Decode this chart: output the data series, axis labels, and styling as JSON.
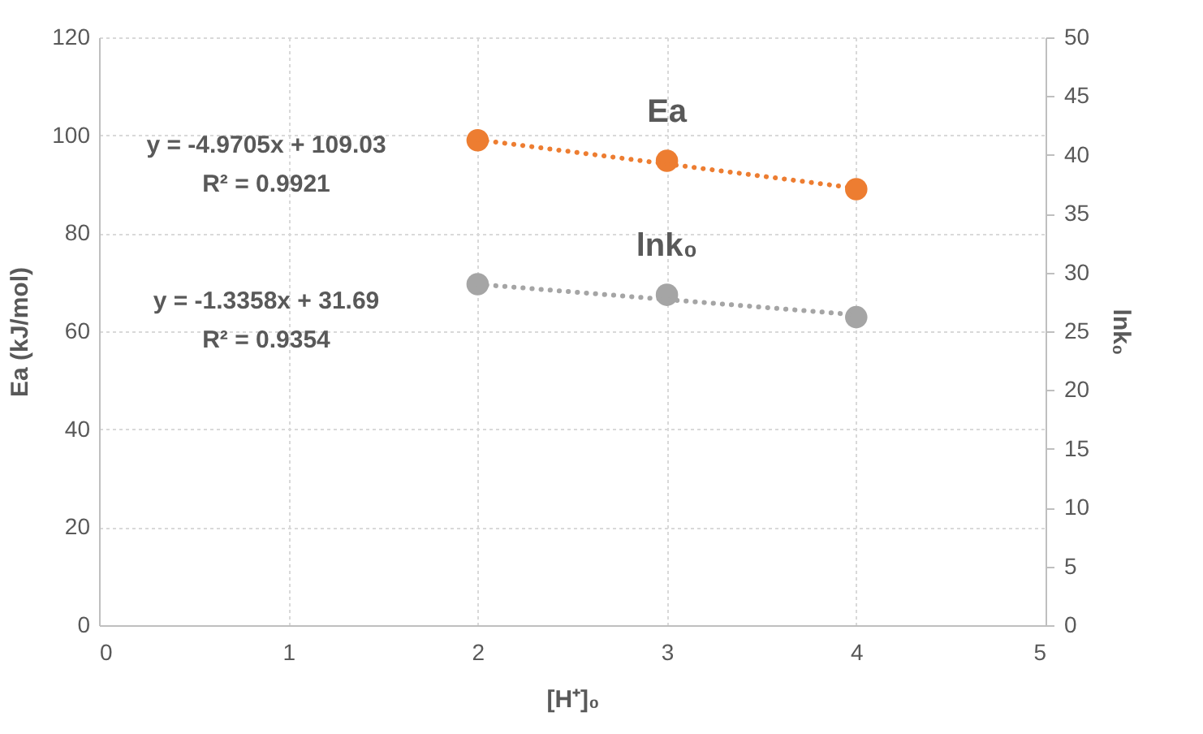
{
  "chart_data": {
    "type": "scatter",
    "xlabel": "[H⁺]₀",
    "ylabel": "Ea (kJ/mol)",
    "y2label": "lnk₀",
    "xlim": [
      0,
      5
    ],
    "xticks": [
      0,
      1,
      2,
      3,
      4,
      5
    ],
    "ylim": [
      0,
      120
    ],
    "yticks": [
      0,
      20,
      40,
      60,
      80,
      100,
      120
    ],
    "y2lim": [
      0,
      50
    ],
    "y2ticks": [
      0,
      5,
      10,
      15,
      20,
      25,
      30,
      35,
      40,
      45,
      50
    ],
    "grid": true,
    "series": [
      {
        "name": "Ea",
        "axis": "y",
        "color": "#ed7d31",
        "marker": "circle",
        "x": [
          2,
          3,
          4
        ],
        "values": [
          99,
          94.8,
          89
        ]
      },
      {
        "type": "line",
        "axis": "y",
        "color": "#ed7d31",
        "marker": "none",
        "line_style": "dotted",
        "x": [
          2,
          4
        ],
        "values": [
          99.1,
          89.2
        ]
      },
      {
        "name": "lnk₀",
        "axis": "y2",
        "color": "#a5a5a5",
        "marker": "circle",
        "x": [
          2,
          3,
          4
        ],
        "values": [
          29.0,
          28.1,
          26.2
        ]
      },
      {
        "type": "line",
        "axis": "y2",
        "color": "#a5a5a5",
        "marker": "none",
        "line_style": "dotted",
        "x": [
          2,
          4
        ],
        "values": [
          29.0,
          26.4
        ]
      }
    ],
    "annotations": [
      "y = -4.9705x + 109.03\nR² = 0.9921",
      "y = -1.3358x + 31.69\nR² = 0.9354"
    ]
  }
}
